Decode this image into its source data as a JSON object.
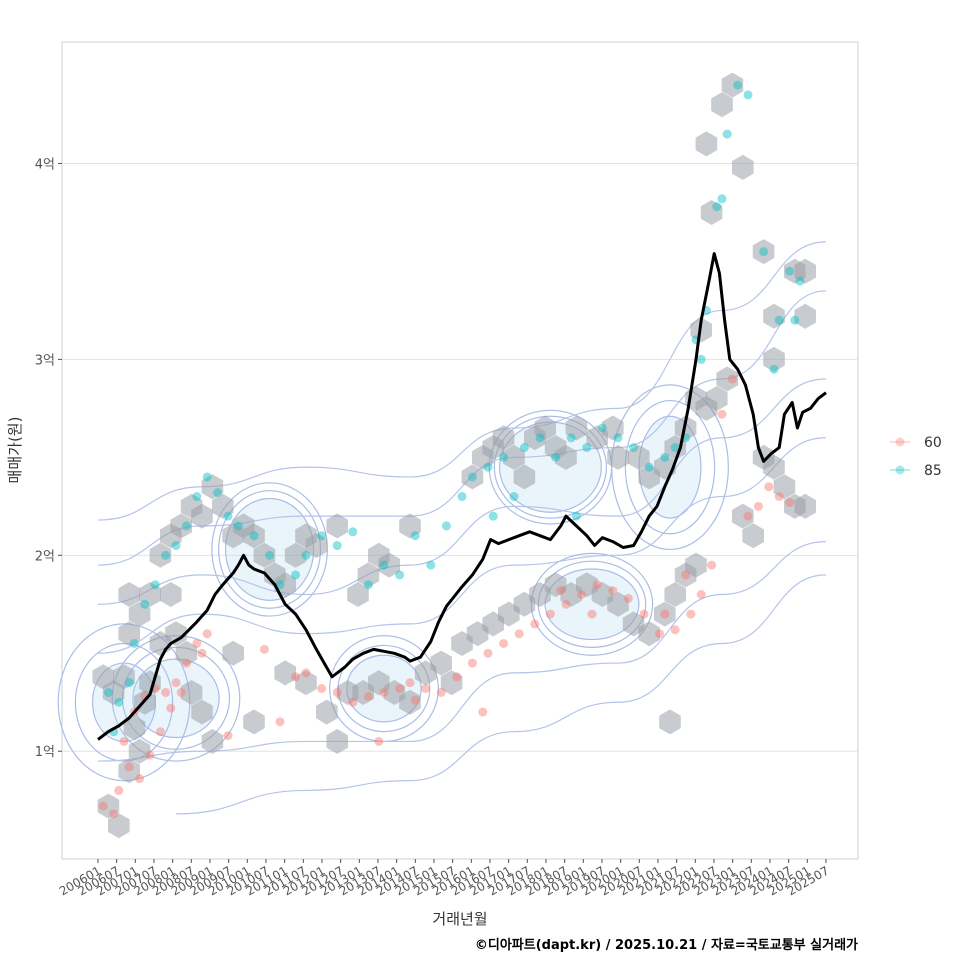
{
  "chart_data": {
    "type": "scatter",
    "xlabel": "거래년월",
    "ylabel": "매매가(원)",
    "ylim": [
      0.45,
      4.62
    ],
    "xlim": [
      0,
      13.5
    ],
    "y_ticks": [
      {
        "v": 1,
        "label": "1억"
      },
      {
        "v": 2,
        "label": "2억"
      },
      {
        "v": 3,
        "label": "3억"
      },
      {
        "v": 4,
        "label": "4억"
      }
    ],
    "x_tick_labels": [
      "200601",
      "200607",
      "200701",
      "200707",
      "200801",
      "200807",
      "200901",
      "200907",
      "201001",
      "201007",
      "201101",
      "201107",
      "201201",
      "201207",
      "201301",
      "201307",
      "201401",
      "201407",
      "201501",
      "201507",
      "201601",
      "201607",
      "201701",
      "201707",
      "201801",
      "201807",
      "201901",
      "201907",
      "202001",
      "202007",
      "202101",
      "202107",
      "202201",
      "202207",
      "202301",
      "202307",
      "202401",
      "202407",
      "202501",
      "202507"
    ],
    "legend": {
      "position": "right",
      "entries": [
        {
          "label": "60",
          "color": "#F8766D"
        },
        {
          "label": "85",
          "color": "#00BFC4"
        }
      ]
    },
    "series": [
      {
        "name": "60",
        "color": "#F8766D",
        "points": [
          [
            0.1,
            0.72
          ],
          [
            0.3,
            0.68
          ],
          [
            0.4,
            0.8
          ],
          [
            0.6,
            0.92
          ],
          [
            0.5,
            1.05
          ],
          [
            0.7,
            1.2
          ],
          [
            0.9,
            1.28
          ],
          [
            1.1,
            1.32
          ],
          [
            1.3,
            1.3
          ],
          [
            1.5,
            1.35
          ],
          [
            1.7,
            1.45
          ],
          [
            1.9,
            1.55
          ],
          [
            2.1,
            1.6
          ],
          [
            0.8,
            0.86
          ],
          [
            1.0,
            0.98
          ],
          [
            1.2,
            1.1
          ],
          [
            1.4,
            1.22
          ],
          [
            1.6,
            1.3
          ],
          [
            2.0,
            1.5
          ],
          [
            2.5,
            1.08
          ],
          [
            3.2,
            1.52
          ],
          [
            3.5,
            1.15
          ],
          [
            3.8,
            1.38
          ],
          [
            4.0,
            1.4
          ],
          [
            4.3,
            1.32
          ],
          [
            4.6,
            1.3
          ],
          [
            4.9,
            1.25
          ],
          [
            5.2,
            1.28
          ],
          [
            5.5,
            1.3
          ],
          [
            5.8,
            1.32
          ],
          [
            6.0,
            1.35
          ],
          [
            6.3,
            1.32
          ],
          [
            6.6,
            1.3
          ],
          [
            6.9,
            1.38
          ],
          [
            7.2,
            1.45
          ],
          [
            7.5,
            1.5
          ],
          [
            7.8,
            1.55
          ],
          [
            8.1,
            1.6
          ],
          [
            8.4,
            1.65
          ],
          [
            8.7,
            1.7
          ],
          [
            9.0,
            1.75
          ],
          [
            9.3,
            1.8
          ],
          [
            9.6,
            1.85
          ],
          [
            9.9,
            1.82
          ],
          [
            10.2,
            1.78
          ],
          [
            10.5,
            1.7
          ],
          [
            10.8,
            1.6
          ],
          [
            11.1,
            1.62
          ],
          [
            11.4,
            1.7
          ],
          [
            11.6,
            1.8
          ],
          [
            11.8,
            1.95
          ],
          [
            12.0,
            2.72
          ],
          [
            12.2,
            2.9
          ],
          [
            12.5,
            2.2
          ],
          [
            12.7,
            2.25
          ],
          [
            12.9,
            2.35
          ],
          [
            13.1,
            2.3
          ],
          [
            13.3,
            2.27
          ],
          [
            7.4,
            1.2
          ],
          [
            5.4,
            1.05
          ],
          [
            6.1,
            1.26
          ],
          [
            8.9,
            1.82
          ],
          [
            9.5,
            1.7
          ],
          [
            10.9,
            1.7
          ],
          [
            11.3,
            1.9
          ]
        ]
      },
      {
        "name": "85",
        "color": "#00BFC4",
        "points": [
          [
            0.2,
            1.3
          ],
          [
            0.4,
            1.25
          ],
          [
            0.6,
            1.35
          ],
          [
            0.3,
            1.1
          ],
          [
            0.7,
            1.55
          ],
          [
            0.9,
            1.75
          ],
          [
            1.1,
            1.85
          ],
          [
            1.3,
            2.0
          ],
          [
            1.5,
            2.05
          ],
          [
            1.7,
            2.15
          ],
          [
            1.9,
            2.3
          ],
          [
            2.1,
            2.4
          ],
          [
            2.3,
            2.32
          ],
          [
            2.5,
            2.2
          ],
          [
            2.7,
            2.15
          ],
          [
            3.0,
            2.1
          ],
          [
            3.3,
            2.0
          ],
          [
            3.5,
            1.85
          ],
          [
            3.8,
            1.9
          ],
          [
            4.0,
            2.0
          ],
          [
            4.3,
            2.1
          ],
          [
            4.6,
            2.05
          ],
          [
            4.9,
            2.12
          ],
          [
            5.2,
            1.85
          ],
          [
            5.5,
            1.95
          ],
          [
            5.8,
            1.9
          ],
          [
            6.1,
            2.1
          ],
          [
            6.7,
            2.15
          ],
          [
            7.0,
            2.3
          ],
          [
            7.2,
            2.4
          ],
          [
            7.5,
            2.45
          ],
          [
            7.8,
            2.5
          ],
          [
            8.0,
            2.3
          ],
          [
            8.2,
            2.55
          ],
          [
            8.5,
            2.6
          ],
          [
            8.8,
            2.5
          ],
          [
            9.1,
            2.6
          ],
          [
            9.4,
            2.55
          ],
          [
            9.7,
            2.65
          ],
          [
            10.0,
            2.6
          ],
          [
            10.3,
            2.55
          ],
          [
            10.6,
            2.45
          ],
          [
            10.9,
            2.5
          ],
          [
            11.1,
            2.55
          ],
          [
            11.3,
            2.6
          ],
          [
            11.5,
            3.1
          ],
          [
            11.7,
            3.25
          ],
          [
            11.9,
            3.78
          ],
          [
            12.1,
            4.15
          ],
          [
            12.3,
            4.4
          ],
          [
            12.5,
            4.35
          ],
          [
            12.8,
            3.55
          ],
          [
            13.0,
            2.95
          ],
          [
            13.1,
            3.2
          ],
          [
            13.3,
            3.45
          ],
          [
            13.5,
            3.4
          ],
          [
            11.6,
            3.0
          ],
          [
            12.0,
            3.82
          ],
          [
            13.4,
            3.2
          ],
          [
            9.2,
            2.2
          ],
          [
            7.6,
            2.2
          ],
          [
            6.4,
            1.95
          ]
        ]
      }
    ],
    "trend_line": {
      "name": "median",
      "color": "#000000",
      "points": [
        [
          0.0,
          1.06
        ],
        [
          0.2,
          1.1
        ],
        [
          0.4,
          1.13
        ],
        [
          0.6,
          1.17
        ],
        [
          0.8,
          1.23
        ],
        [
          1.0,
          1.29
        ],
        [
          1.1,
          1.38
        ],
        [
          1.2,
          1.47
        ],
        [
          1.3,
          1.52
        ],
        [
          1.4,
          1.55
        ],
        [
          1.6,
          1.58
        ],
        [
          1.75,
          1.62
        ],
        [
          1.9,
          1.66
        ],
        [
          2.1,
          1.72
        ],
        [
          2.25,
          1.8
        ],
        [
          2.4,
          1.85
        ],
        [
          2.5,
          1.88
        ],
        [
          2.6,
          1.91
        ],
        [
          2.7,
          1.95
        ],
        [
          2.8,
          2.0
        ],
        [
          2.9,
          1.95
        ],
        [
          3.0,
          1.93
        ],
        [
          3.2,
          1.91
        ],
        [
          3.4,
          1.85
        ],
        [
          3.6,
          1.75
        ],
        [
          3.8,
          1.7
        ],
        [
          4.0,
          1.62
        ],
        [
          4.2,
          1.52
        ],
        [
          4.35,
          1.45
        ],
        [
          4.5,
          1.38
        ],
        [
          4.6,
          1.4
        ],
        [
          4.75,
          1.43
        ],
        [
          4.9,
          1.47
        ],
        [
          5.1,
          1.5
        ],
        [
          5.3,
          1.52
        ],
        [
          5.5,
          1.51
        ],
        [
          5.7,
          1.5
        ],
        [
          5.9,
          1.48
        ],
        [
          6.0,
          1.46
        ],
        [
          6.2,
          1.48
        ],
        [
          6.4,
          1.56
        ],
        [
          6.55,
          1.66
        ],
        [
          6.7,
          1.74
        ],
        [
          6.85,
          1.79
        ],
        [
          7.0,
          1.84
        ],
        [
          7.2,
          1.9
        ],
        [
          7.4,
          1.98
        ],
        [
          7.55,
          2.08
        ],
        [
          7.7,
          2.06
        ],
        [
          7.9,
          2.08
        ],
        [
          8.1,
          2.1
        ],
        [
          8.3,
          2.12
        ],
        [
          8.5,
          2.1
        ],
        [
          8.7,
          2.08
        ],
        [
          8.9,
          2.15
        ],
        [
          9.0,
          2.2
        ],
        [
          9.2,
          2.15
        ],
        [
          9.4,
          2.1
        ],
        [
          9.55,
          2.05
        ],
        [
          9.7,
          2.09
        ],
        [
          9.9,
          2.07
        ],
        [
          10.1,
          2.04
        ],
        [
          10.3,
          2.05
        ],
        [
          10.45,
          2.12
        ],
        [
          10.6,
          2.2
        ],
        [
          10.75,
          2.25
        ],
        [
          10.9,
          2.35
        ],
        [
          11.05,
          2.44
        ],
        [
          11.2,
          2.55
        ],
        [
          11.35,
          2.75
        ],
        [
          11.5,
          3.0
        ],
        [
          11.6,
          3.2
        ],
        [
          11.75,
          3.4
        ],
        [
          11.85,
          3.54
        ],
        [
          11.95,
          3.44
        ],
        [
          12.05,
          3.2
        ],
        [
          12.15,
          3.0
        ],
        [
          12.3,
          2.95
        ],
        [
          12.45,
          2.87
        ],
        [
          12.6,
          2.72
        ],
        [
          12.7,
          2.55
        ],
        [
          12.8,
          2.48
        ],
        [
          12.95,
          2.52
        ],
        [
          13.1,
          2.55
        ],
        [
          13.2,
          2.72
        ],
        [
          13.35,
          2.78
        ],
        [
          13.45,
          2.65
        ],
        [
          13.55,
          2.73
        ],
        [
          13.7,
          2.75
        ],
        [
          13.85,
          2.8
        ],
        [
          14.0,
          2.83
        ]
      ]
    },
    "hex_bins": [
      [
        0.1,
        1.38
      ],
      [
        0.3,
        1.3
      ],
      [
        0.5,
        1.38
      ],
      [
        0.2,
        0.72
      ],
      [
        0.4,
        0.62
      ],
      [
        0.6,
        0.9
      ],
      [
        0.8,
        1.0
      ],
      [
        0.7,
        1.12
      ],
      [
        0.9,
        1.25
      ],
      [
        1.0,
        1.35
      ],
      [
        0.6,
        1.6
      ],
      [
        0.6,
        1.8
      ],
      [
        0.8,
        1.7
      ],
      [
        1.0,
        1.8
      ],
      [
        1.4,
        1.8
      ],
      [
        1.2,
        2.0
      ],
      [
        1.4,
        2.1
      ],
      [
        1.6,
        2.15
      ],
      [
        1.8,
        2.25
      ],
      [
        2.0,
        2.2
      ],
      [
        2.2,
        2.35
      ],
      [
        2.4,
        2.25
      ],
      [
        2.6,
        2.1
      ],
      [
        2.8,
        2.15
      ],
      [
        3.0,
        2.1
      ],
      [
        3.2,
        2.0
      ],
      [
        3.4,
        1.9
      ],
      [
        3.6,
        1.85
      ],
      [
        3.8,
        2.0
      ],
      [
        4.0,
        2.1
      ],
      [
        4.2,
        2.05
      ],
      [
        4.6,
        2.15
      ],
      [
        5.0,
        1.8
      ],
      [
        5.2,
        1.9
      ],
      [
        5.4,
        2.0
      ],
      [
        5.6,
        1.95
      ],
      [
        6.0,
        2.15
      ],
      [
        1.2,
        1.55
      ],
      [
        1.5,
        1.6
      ],
      [
        1.7,
        1.5
      ],
      [
        1.8,
        1.3
      ],
      [
        2.0,
        1.2
      ],
      [
        2.2,
        1.05
      ],
      [
        2.6,
        1.5
      ],
      [
        3.0,
        1.15
      ],
      [
        3.6,
        1.4
      ],
      [
        4.0,
        1.35
      ],
      [
        4.4,
        1.2
      ],
      [
        4.6,
        1.05
      ],
      [
        4.8,
        1.3
      ],
      [
        5.1,
        1.3
      ],
      [
        5.4,
        1.35
      ],
      [
        5.7,
        1.3
      ],
      [
        6.0,
        1.25
      ],
      [
        6.3,
        1.4
      ],
      [
        6.6,
        1.45
      ],
      [
        6.8,
        1.35
      ],
      [
        7.0,
        1.55
      ],
      [
        7.3,
        1.6
      ],
      [
        7.6,
        1.65
      ],
      [
        7.9,
        1.7
      ],
      [
        8.2,
        1.75
      ],
      [
        8.5,
        1.8
      ],
      [
        8.8,
        1.85
      ],
      [
        9.1,
        1.8
      ],
      [
        9.4,
        1.85
      ],
      [
        9.7,
        1.8
      ],
      [
        10.0,
        1.75
      ],
      [
        10.3,
        1.65
      ],
      [
        10.6,
        1.6
      ],
      [
        10.9,
        1.7
      ],
      [
        11.1,
        1.8
      ],
      [
        11.3,
        1.9
      ],
      [
        11.5,
        1.95
      ],
      [
        7.2,
        2.4
      ],
      [
        7.4,
        2.5
      ],
      [
        7.6,
        2.55
      ],
      [
        7.8,
        2.6
      ],
      [
        8.0,
        2.5
      ],
      [
        8.2,
        2.4
      ],
      [
        8.4,
        2.6
      ],
      [
        8.6,
        2.65
      ],
      [
        8.8,
        2.55
      ],
      [
        9.0,
        2.5
      ],
      [
        9.2,
        2.65
      ],
      [
        9.6,
        2.6
      ],
      [
        9.9,
        2.65
      ],
      [
        10.0,
        2.5
      ],
      [
        10.4,
        2.5
      ],
      [
        10.6,
        2.4
      ],
      [
        10.9,
        2.45
      ],
      [
        11.1,
        2.55
      ],
      [
        11.3,
        2.65
      ],
      [
        11.5,
        2.8
      ],
      [
        11.7,
        2.75
      ],
      [
        11.9,
        2.8
      ],
      [
        12.1,
        2.9
      ],
      [
        11.0,
        1.15
      ],
      [
        12.4,
        2.2
      ],
      [
        12.6,
        2.1
      ],
      [
        12.8,
        2.5
      ],
      [
        13.0,
        2.45
      ],
      [
        13.2,
        2.35
      ],
      [
        13.4,
        2.25
      ],
      [
        13.6,
        2.25
      ],
      [
        11.6,
        3.15
      ],
      [
        11.8,
        3.75
      ],
      [
        11.7,
        4.1
      ],
      [
        12.0,
        4.3
      ],
      [
        12.2,
        4.4
      ],
      [
        12.4,
        3.98
      ],
      [
        12.8,
        3.55
      ],
      [
        13.0,
        3.22
      ],
      [
        13.0,
        3.0
      ],
      [
        13.4,
        3.45
      ],
      [
        13.6,
        3.45
      ],
      [
        13.6,
        3.22
      ]
    ],
    "density_centers": [
      [
        1.5,
        1.27,
        1.15,
        0.14,
        0.06
      ],
      [
        3.3,
        2.03,
        1.3,
        0.22,
        0.04
      ],
      [
        5.5,
        1.32,
        1.0,
        0.12,
        0.05
      ],
      [
        8.7,
        2.45,
        1.6,
        0.2,
        0.03
      ],
      [
        9.5,
        1.75,
        1.4,
        0.14,
        0.04
      ],
      [
        11.0,
        2.45,
        0.6,
        0.18,
        0.08
      ],
      [
        0.5,
        1.25,
        0.5,
        0.1,
        0.1
      ]
    ]
  },
  "caption": "©디아파트(dapt.kr) / 2025.10.21 / 자료=국토교통부 실거래가"
}
